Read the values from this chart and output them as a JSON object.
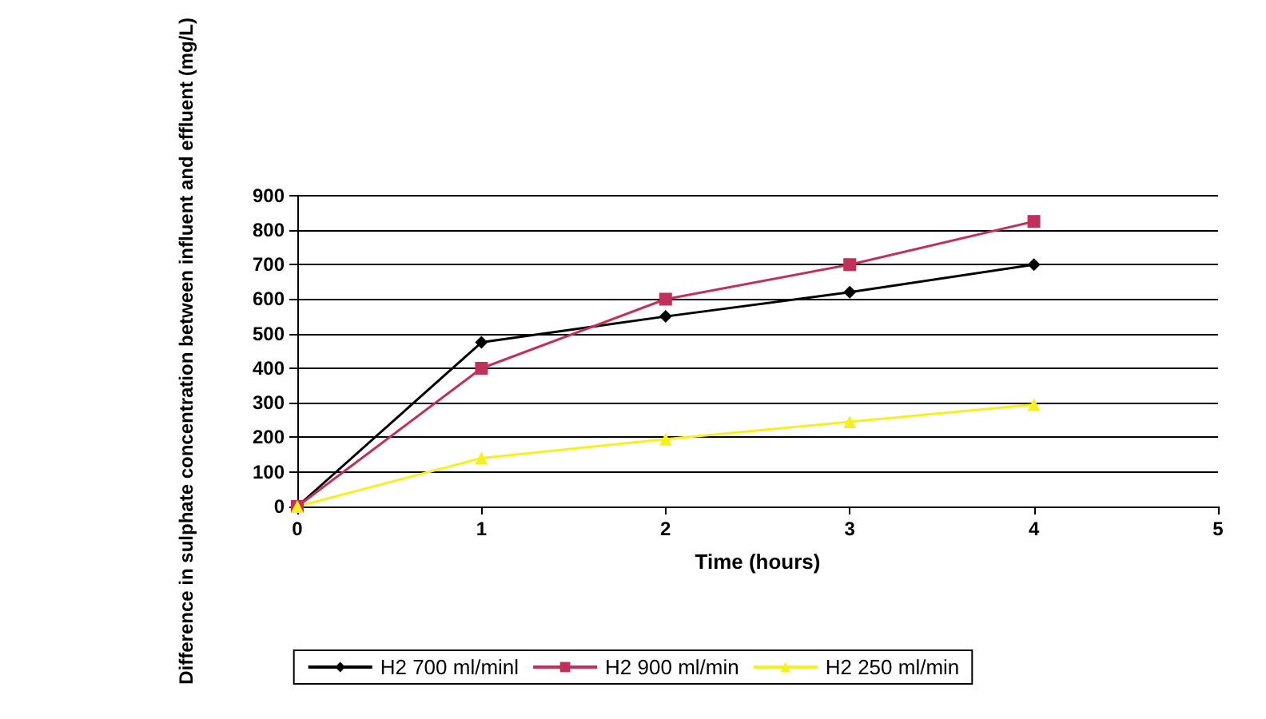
{
  "chart_data": {
    "type": "line",
    "xlabel": "Time (hours)",
    "ylabel": "Difference in sulphate concentration between influent and effluent (mg/L)",
    "x": [
      0,
      1,
      2,
      3,
      4
    ],
    "xlim": [
      0,
      5
    ],
    "xticks": [
      0,
      1,
      2,
      3,
      4,
      5
    ],
    "ylim": [
      0,
      900
    ],
    "yticks": [
      0,
      100,
      200,
      300,
      400,
      500,
      600,
      700,
      800,
      900
    ],
    "grid": "y",
    "legend": "bottom",
    "series": [
      {
        "name": "H2 700 ml/minl",
        "color": "#000000",
        "marker": "diamond",
        "values": [
          0,
          475,
          550,
          620,
          700
        ]
      },
      {
        "name": "H2 900 ml/min",
        "color": "#c0305a",
        "marker": "square",
        "values": [
          0,
          400,
          600,
          700,
          825
        ]
      },
      {
        "name": "H2 250 ml/min",
        "color": "#f5f01e",
        "marker": "triangle",
        "values": [
          0,
          140,
          195,
          245,
          295
        ]
      }
    ]
  }
}
